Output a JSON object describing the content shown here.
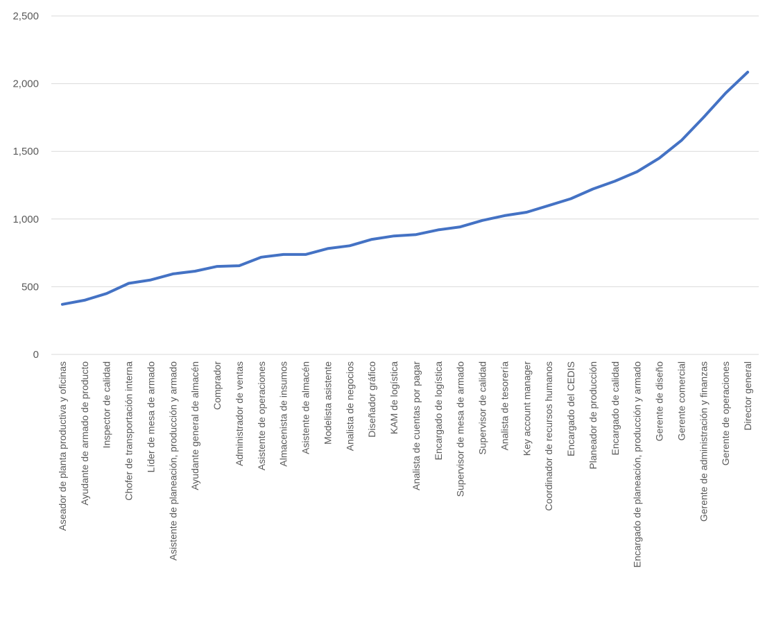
{
  "colors": {
    "series": "#4472c4",
    "grid": "#d9d9d9",
    "text": "#595959"
  },
  "chart_data": {
    "type": "line",
    "title": "",
    "xlabel": "",
    "ylabel": "",
    "ylim": [
      0,
      2500
    ],
    "yticks": [
      0,
      500,
      1000,
      1500,
      2000,
      2500
    ],
    "ytick_labels": [
      "0",
      "500",
      "1,000",
      "1,500",
      "2,000",
      "2,500"
    ],
    "grid": true,
    "legend": "none",
    "categories": [
      "Aseador de planta productiva y oficinas",
      "Ayudante de armado de producto",
      "Inspector de calidad",
      "Chofer de transportación interna",
      "Líder de mesa de armado",
      "Asistente de planeación, producción y armado",
      "Ayudante general de almacén",
      "Comprador",
      "Administrador de ventas",
      "Asistente de operaciones",
      "Almacenista de insumos",
      "Asistente de almacén",
      "Modelista asistente",
      "Analista de negocios",
      "Diseñador gráfico",
      "KAM de logística",
      "Analista de cuentas por pagar",
      "Encargado de logística",
      "Supervisor de mesa de armado",
      "Supervisor  de calidad",
      "Analista de tesorería",
      "Key account manager",
      "Coordinador de recursos humanos",
      "Encargado del CEDIS",
      "Planeador de producción",
      "Encargado de calidad",
      "Encargado de planeación, producción y armado",
      "Gerente de diseño",
      "Gerente comercial",
      "Gerente de administración y finanzas",
      "Gerente de operaciones",
      "Director general"
    ],
    "series": [
      {
        "values": [
          370,
          400,
          450,
          525,
          550,
          595,
          615,
          650,
          655,
          718,
          738,
          738,
          782,
          803,
          850,
          875,
          885,
          920,
          942,
          990,
          1025,
          1050,
          1100,
          1150,
          1222,
          1280,
          1350,
          1450,
          1580,
          1750,
          1930,
          2085
        ]
      }
    ]
  }
}
